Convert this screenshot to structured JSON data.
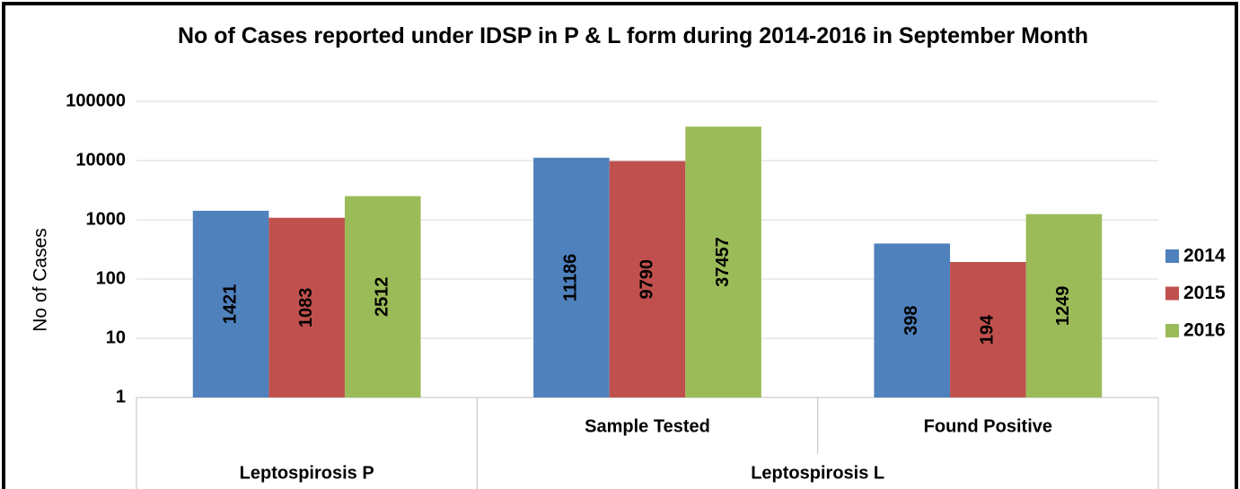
{
  "chart_data": {
    "type": "bar",
    "title": "No of Cases reported under IDSP in P & L form during 2014-2016 in September Month",
    "y_label": "No of Cases",
    "groups": [
      {
        "name": "Leptospirosis P",
        "categories": [
          null
        ]
      },
      {
        "name": "Leptospirosis L",
        "categories": [
          "Sample Tested",
          "Found Positive"
        ]
      }
    ],
    "series": [
      {
        "name": "2014",
        "color": "#4f81bd",
        "values": [
          1421,
          11186,
          398
        ]
      },
      {
        "name": "2015",
        "color": "#c0504d",
        "values": [
          1083,
          9790,
          194
        ]
      },
      {
        "name": "2016",
        "color": "#9bbb59",
        "values": [
          2512,
          37457,
          1249
        ]
      }
    ],
    "log_scale": true,
    "ylim": [
      1,
      100000
    ],
    "yticks": [
      1,
      10,
      100,
      1000,
      10000,
      100000
    ],
    "grid": true,
    "legend": "right"
  }
}
